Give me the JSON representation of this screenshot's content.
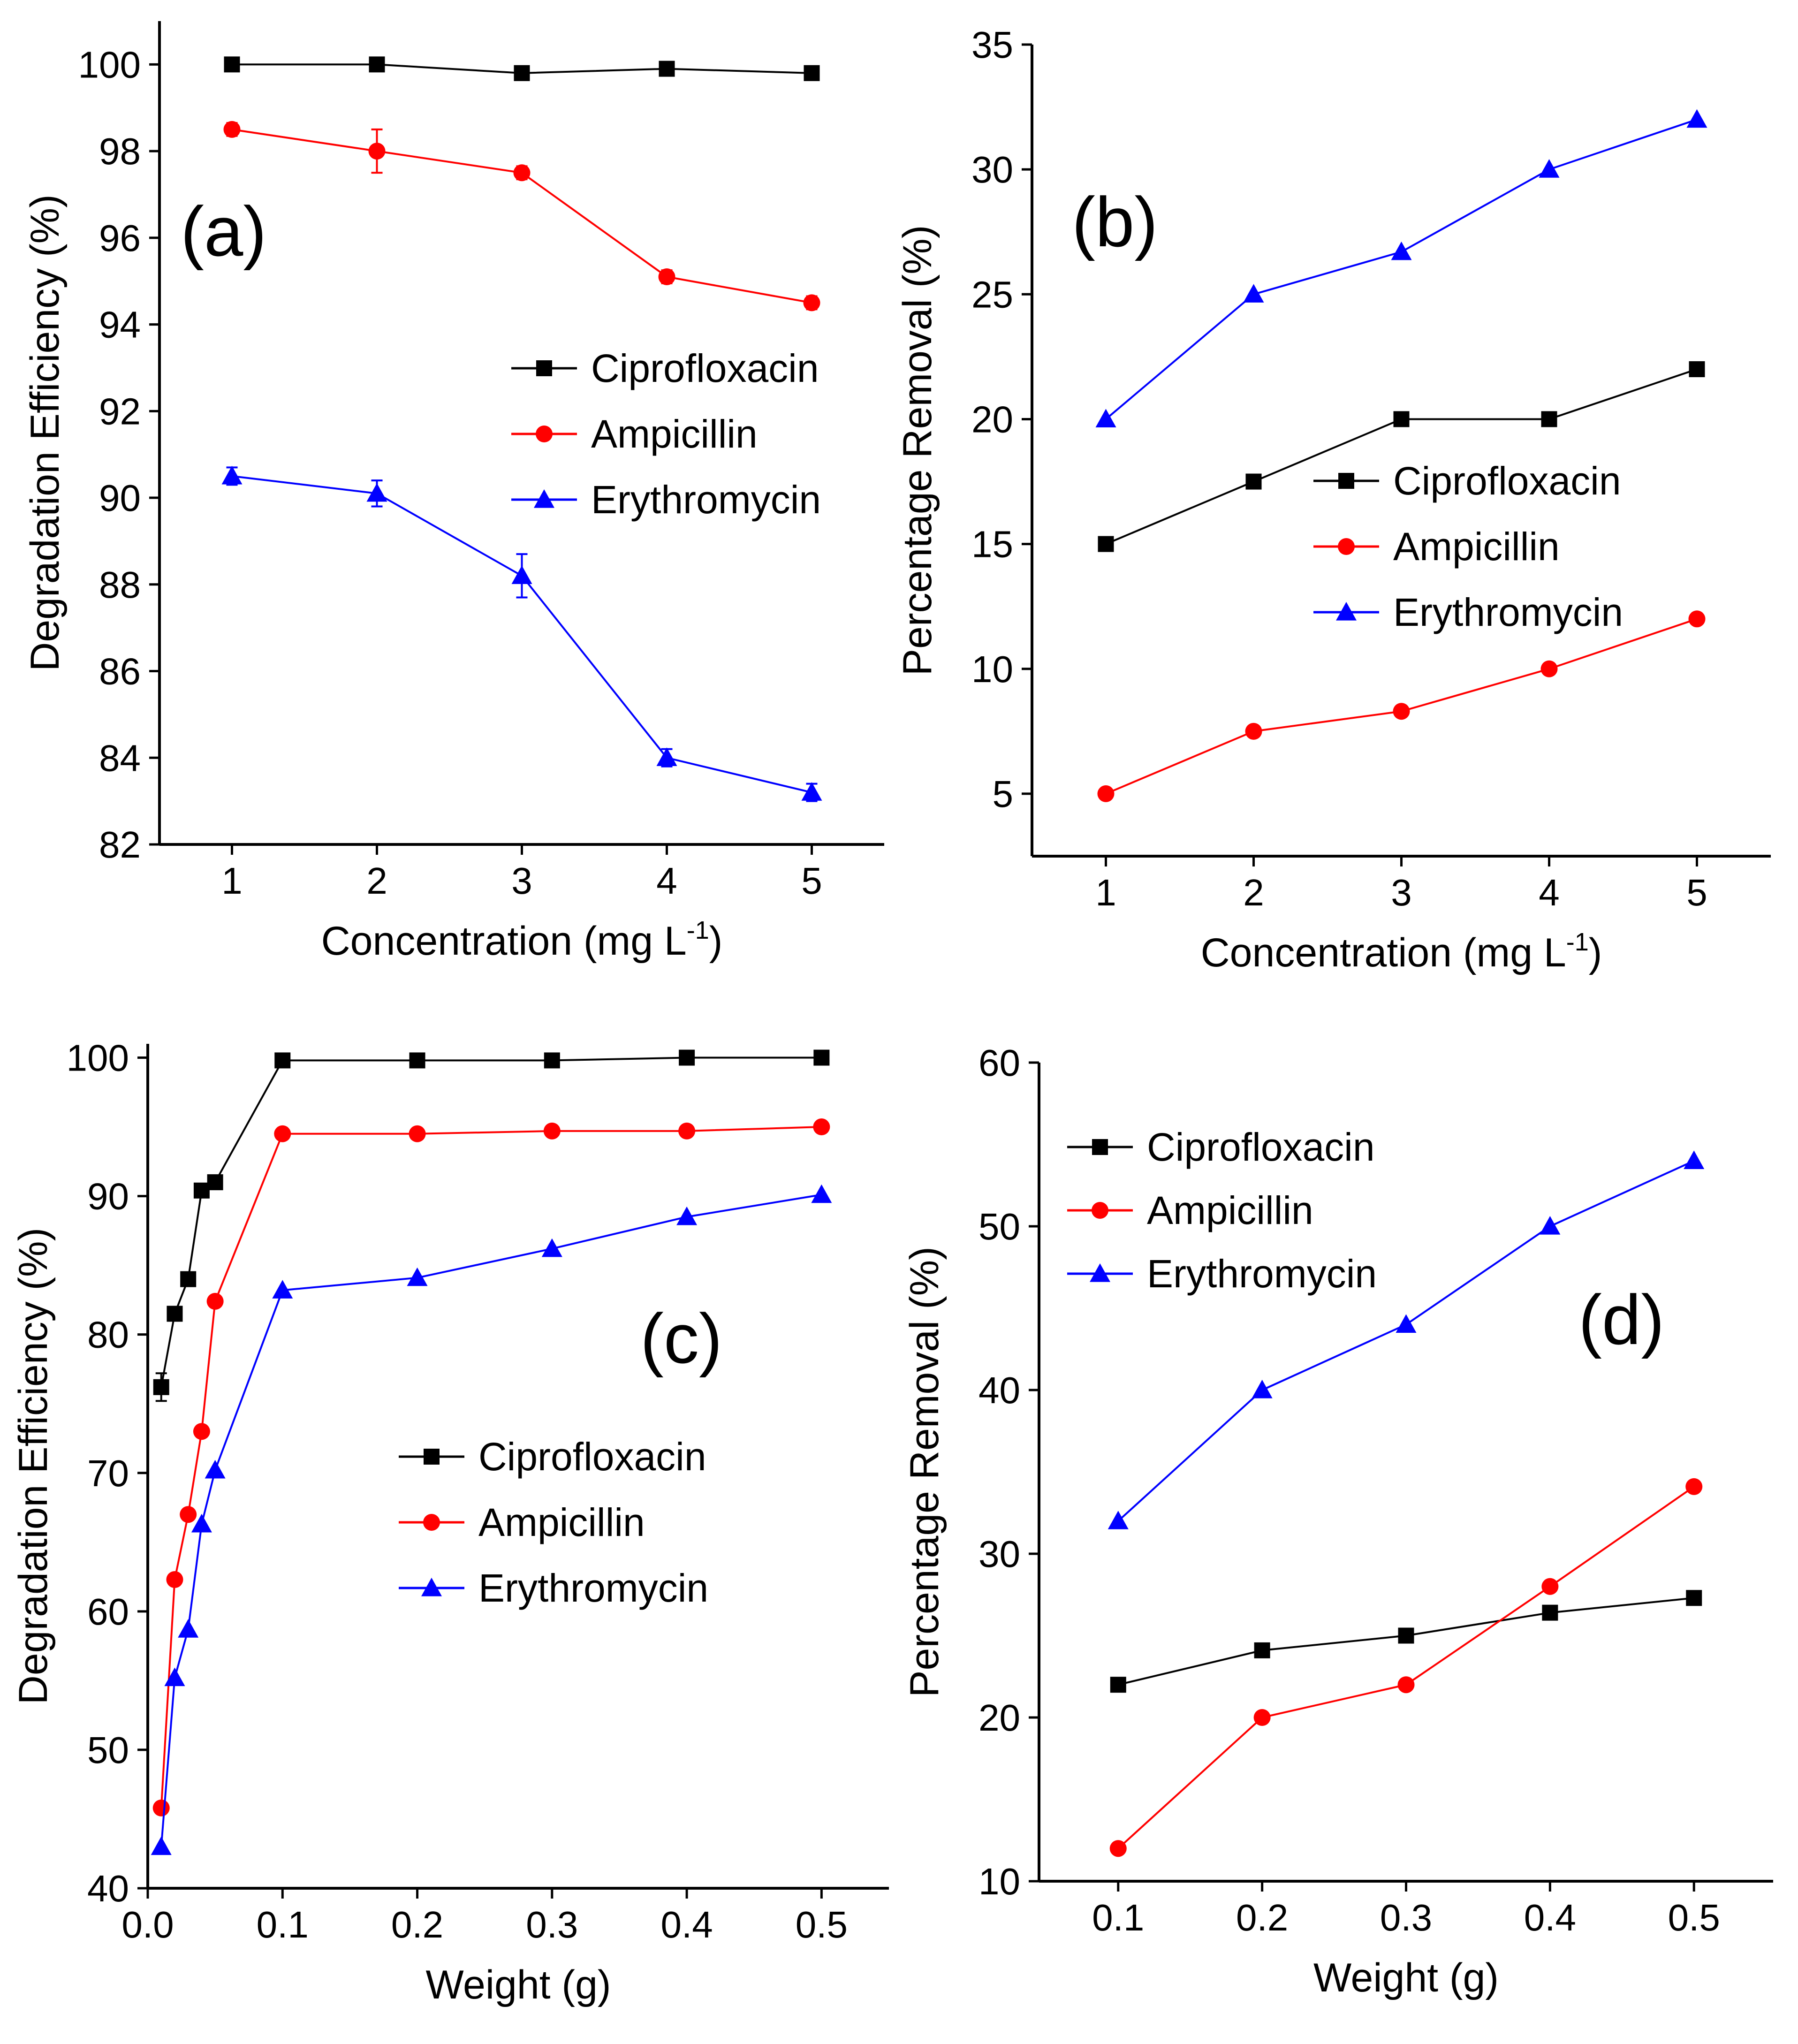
{
  "colors": {
    "Ciprofloxacin": "#000000",
    "Ampicillin": "#ff0000",
    "Erythromycin": "#0000ff"
  },
  "chart_data": [
    {
      "id": "a",
      "type": "line",
      "panel_label": "(a)",
      "xlabel": "Concentration (mg L",
      "xlabel_sup": "-1",
      "xlabel_tail": ")",
      "ylabel": "Degradation Efficiency (%)",
      "xlim": [
        0.5,
        5.5
      ],
      "ylim": [
        82,
        101
      ],
      "xticks": [
        1,
        2,
        3,
        4,
        5
      ],
      "yticks": [
        82,
        84,
        86,
        88,
        90,
        92,
        94,
        96,
        98,
        100
      ],
      "x": [
        1,
        2,
        3,
        4,
        5
      ],
      "legend_position": "center-right",
      "series": [
        {
          "name": "Ciprofloxacin",
          "marker": "square",
          "values": [
            100,
            100,
            99.8,
            99.9,
            99.8
          ],
          "errors": [
            0.1,
            0.1,
            0.15,
            0.1,
            0.15
          ]
        },
        {
          "name": "Ampicillin",
          "marker": "circle",
          "values": [
            98.5,
            98,
            97.5,
            95.1,
            94.5
          ],
          "errors": [
            0.15,
            0.5,
            0.15,
            0.15,
            0.15
          ]
        },
        {
          "name": "Erythromycin",
          "marker": "triangle",
          "values": [
            90.5,
            90.1,
            88.2,
            84,
            83.2
          ],
          "errors": [
            0.2,
            0.3,
            0.5,
            0.2,
            0.2
          ]
        }
      ]
    },
    {
      "id": "b",
      "type": "line",
      "panel_label": "(b)",
      "xlabel": "Concentration (mg L",
      "xlabel_sup": "-1",
      "xlabel_tail": ")",
      "ylabel": "Percentage Removal (%)",
      "xlim": [
        0.5,
        5.5
      ],
      "ylim": [
        2.5,
        35
      ],
      "xticks": [
        1,
        2,
        3,
        4,
        5
      ],
      "yticks": [
        5,
        10,
        15,
        20,
        25,
        30,
        35
      ],
      "x": [
        1,
        2,
        3,
        4,
        5
      ],
      "legend_position": "center-right",
      "series": [
        {
          "name": "Ciprofloxacin",
          "marker": "square",
          "values": [
            15,
            17.5,
            20,
            20,
            22
          ]
        },
        {
          "name": "Ampicillin",
          "marker": "circle",
          "values": [
            5,
            7.5,
            8.3,
            10,
            12
          ]
        },
        {
          "name": "Erythromycin",
          "marker": "triangle",
          "values": [
            20,
            25,
            26.7,
            30,
            32
          ]
        }
      ]
    },
    {
      "id": "c",
      "type": "line",
      "panel_label": "(c)",
      "xlabel": "Weight (g)",
      "xlabel_sup": "",
      "xlabel_tail": "",
      "ylabel": "Degradation Efficiency (%)",
      "xlim": [
        0,
        0.55
      ],
      "ylim": [
        40,
        101
      ],
      "xticks": [
        0.0,
        0.1,
        0.2,
        0.3,
        0.4,
        0.5
      ],
      "xtick_labels": [
        "0.0",
        "0.1",
        "0.2",
        "0.3",
        "0.4",
        "0.5"
      ],
      "yticks": [
        40,
        50,
        60,
        70,
        80,
        90,
        100
      ],
      "x": [
        0.01,
        0.02,
        0.03,
        0.04,
        0.05,
        0.1,
        0.2,
        0.3,
        0.4,
        0.5
      ],
      "legend_position": "center-right",
      "series": [
        {
          "name": "Ciprofloxacin",
          "marker": "square",
          "values": [
            76.2,
            81.5,
            84,
            90.4,
            91,
            99.8,
            99.8,
            99.8,
            100,
            100
          ],
          "errors": [
            1,
            0.5,
            0.3,
            0.3,
            0.3,
            0.2,
            0.2,
            0.2,
            0.2,
            0.2
          ]
        },
        {
          "name": "Ampicillin",
          "marker": "circle",
          "values": [
            45.8,
            62.3,
            67,
            73,
            82.4,
            94.5,
            94.5,
            94.7,
            94.7,
            95
          ]
        },
        {
          "name": "Erythromycin",
          "marker": "triangle",
          "values": [
            43,
            55.2,
            58.7,
            66.3,
            70.2,
            83.2,
            84.1,
            86.2,
            88.5,
            90.1
          ]
        }
      ]
    },
    {
      "id": "d",
      "type": "line",
      "panel_label": "(d)",
      "xlabel": "Weight (g)",
      "xlabel_sup": "",
      "xlabel_tail": "",
      "ylabel": "Percentage Removal (%)",
      "xlim": [
        0.045,
        0.555
      ],
      "ylim": [
        10,
        60
      ],
      "xticks": [
        0.1,
        0.2,
        0.3,
        0.4,
        0.5
      ],
      "xtick_labels": [
        "0.1",
        "0.2",
        "0.3",
        "0.4",
        "0.5"
      ],
      "yticks": [
        10,
        20,
        30,
        40,
        50,
        60
      ],
      "x": [
        0.1,
        0.2,
        0.3,
        0.4,
        0.5
      ],
      "legend_position": "top-left",
      "series": [
        {
          "name": "Ciprofloxacin",
          "marker": "square",
          "values": [
            22,
            24.1,
            25,
            26.4,
            27.3
          ]
        },
        {
          "name": "Ampicillin",
          "marker": "circle",
          "values": [
            12,
            20,
            22,
            28,
            34.1
          ]
        },
        {
          "name": "Erythromycin",
          "marker": "triangle",
          "values": [
            32,
            40,
            44,
            50,
            54
          ]
        }
      ]
    }
  ]
}
